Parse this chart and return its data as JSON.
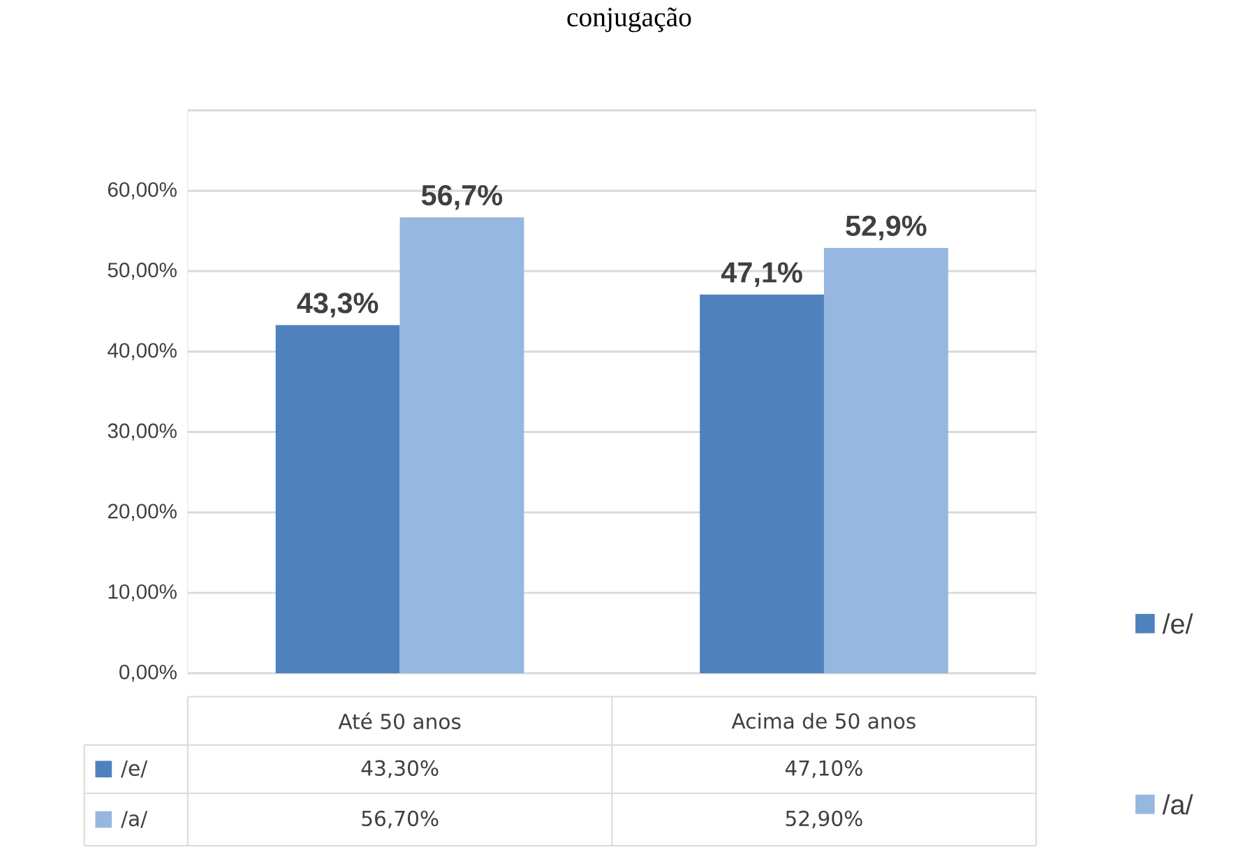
{
  "chart_data": {
    "type": "bar",
    "title": "conjugação",
    "categories": [
      "Até 50 anos",
      "Acima de 50 anos"
    ],
    "series": [
      {
        "name": "/e/",
        "color": "#4f81bd",
        "values": [
          43.3,
          47.1
        ],
        "value_labels": [
          "43,3%",
          "47,1%"
        ]
      },
      {
        "name": "/a/",
        "color": "#95b7e0",
        "values": [
          56.7,
          52.9
        ],
        "value_labels": [
          "56,7%",
          "52,9%"
        ]
      }
    ],
    "ylim": [
      0,
      70
    ],
    "yticks": [
      {
        "value": 0,
        "label": "0,00%"
      },
      {
        "value": 10,
        "label": "10,00%"
      },
      {
        "value": 20,
        "label": "20,00%"
      },
      {
        "value": 30,
        "label": "30,00%"
      },
      {
        "value": 40,
        "label": "40,00%"
      },
      {
        "value": 50,
        "label": "50,00%"
      },
      {
        "value": 60,
        "label": "60,00%"
      },
      {
        "value": 70,
        "label": null
      }
    ],
    "grid": "y",
    "legend": "right",
    "annotations": [
      "43,30%",
      "47,10%",
      "56,70%",
      "52,90%"
    ]
  }
}
